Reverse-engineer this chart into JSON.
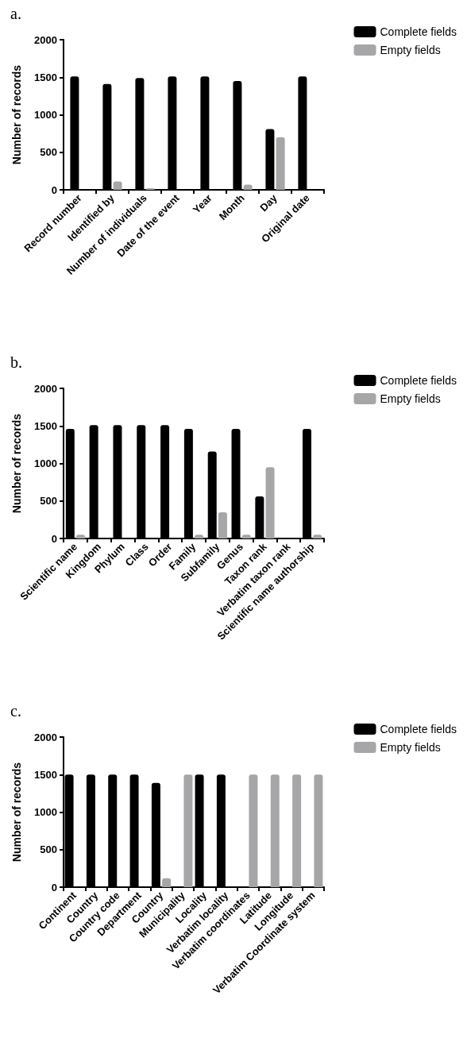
{
  "chart_data": [
    {
      "type": "bar",
      "title": "a.",
      "ylabel": "Number of records",
      "categories": [
        "Record number",
        "Identified by",
        "Number of individuals",
        "Date of the event",
        "Year",
        "Month",
        "Day",
        "Original date"
      ],
      "series": [
        {
          "name": "Complete fields",
          "color": "#000000",
          "values": [
            1510,
            1410,
            1490,
            1510,
            1510,
            1450,
            810,
            1510
          ]
        },
        {
          "name": "Empty fields",
          "color": "#a6a6a8",
          "values": [
            0,
            110,
            20,
            0,
            0,
            70,
            700,
            0
          ]
        }
      ],
      "ylim": [
        0,
        2000
      ],
      "yticks": [
        0,
        500,
        1000,
        1500,
        2000
      ],
      "grid": false,
      "legend": "top right"
    },
    {
      "type": "bar",
      "title": "b.",
      "ylabel": "Number of records",
      "categories": [
        "Scientific name",
        "Kingdom",
        "Phylum",
        "Class",
        "Order",
        "Family",
        "Subfamily",
        "Genus",
        "Taxon rank",
        "Verbatim taxon rank",
        "Scientific name authorship"
      ],
      "series": [
        {
          "name": "Complete fields",
          "color": "#000000",
          "values": [
            1460,
            1510,
            1510,
            1510,
            1510,
            1460,
            1160,
            1460,
            560,
            0,
            1460
          ]
        },
        {
          "name": "Empty fields",
          "color": "#a6a6a8",
          "values": [
            50,
            0,
            0,
            0,
            0,
            50,
            350,
            50,
            950,
            0,
            50
          ]
        }
      ],
      "ylim": [
        0,
        2000
      ],
      "yticks": [
        0,
        500,
        1000,
        1500,
        2000
      ],
      "grid": false,
      "legend": "top right"
    },
    {
      "type": "bar",
      "title": "c.",
      "ylabel": "Number of records",
      "categories": [
        "Continent",
        "Country",
        "Country code",
        "Department",
        "Country",
        "Municipality",
        "Locality",
        "Verbatim locality",
        "Verbatim coordinates",
        "Latitude",
        "Longitude",
        "Verbatim Coordinate system"
      ],
      "series": [
        {
          "name": "Complete fields",
          "color": "#000000",
          "values": [
            1500,
            1500,
            1500,
            1500,
            1390,
            10,
            1500,
            1500,
            10,
            10,
            10,
            0
          ]
        },
        {
          "name": "Empty fields",
          "color": "#a6a6a8",
          "values": [
            0,
            0,
            0,
            null,
            120,
            1500,
            0,
            null,
            1500,
            1500,
            1500,
            1500
          ]
        }
      ],
      "ylim": [
        0,
        2000
      ],
      "yticks": [
        0,
        500,
        1000,
        1500,
        2000
      ],
      "grid": false,
      "legend": "top right"
    }
  ]
}
